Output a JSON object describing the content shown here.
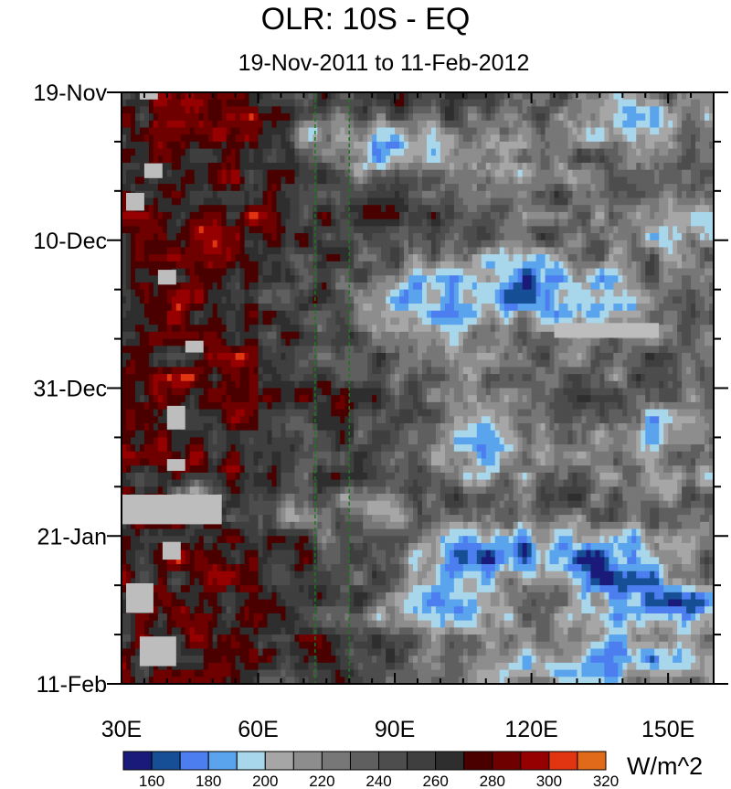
{
  "chart_data": {
    "type": "heatmap",
    "title": "OLR: 10S - EQ",
    "subtitle": "19-Nov-2011 to 11-Feb-2012",
    "x_axis": {
      "range": [
        30,
        160
      ],
      "tick_values": [
        30,
        60,
        90,
        120,
        150
      ],
      "tick_labels": [
        "30E",
        "60E",
        "90E",
        "120E",
        "150E"
      ]
    },
    "y_axis": {
      "range": [
        "19-Nov",
        "11-Feb"
      ],
      "tick_labels": [
        "19-Nov",
        "10-Dec",
        "31-Dec",
        "21-Jan",
        "11-Feb"
      ]
    },
    "reference_lines_x": [
      72.5,
      80
    ],
    "colorbar": {
      "units": "W/m^2",
      "tick_labels": [
        "160",
        "180",
        "200",
        "220",
        "240",
        "260",
        "280",
        "300",
        "320"
      ],
      "colors": [
        "#1a1a7a",
        "#174f96",
        "#4c7ef0",
        "#5aa4ee",
        "#a8d6ea",
        "#a6a6a6",
        "#8d8d8d",
        "#777777",
        "#5f5f5f",
        "#4d4d4d",
        "#3f3f3f",
        "#2e2e2e",
        "#4b0000",
        "#6e0000",
        "#960000",
        "#e03510",
        "#e06a1a"
      ]
    },
    "missing_color": "#bdbdbd"
  }
}
